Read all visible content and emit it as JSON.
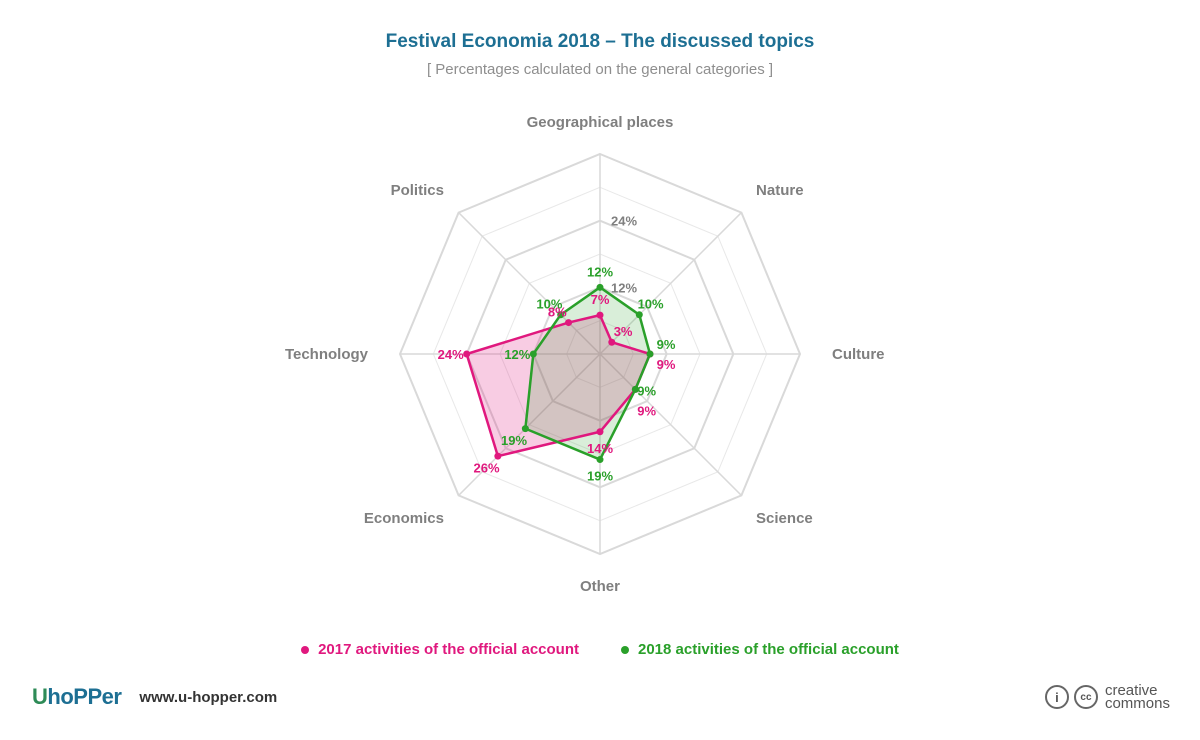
{
  "header": {
    "title": "Festival Economia 2018 – The discussed topics",
    "subtitle": "[ Percentages calculated on the general categories ]"
  },
  "chart_data": {
    "type": "radar",
    "categories": [
      "Geographical places",
      "Nature",
      "Culture",
      "Science",
      "Other",
      "Economics",
      "Technology",
      "Politics"
    ],
    "rlim": [
      0,
      36
    ],
    "ring_step": 6,
    "axis_tick_labels": [
      "12%",
      "24%"
    ],
    "series": [
      {
        "name": "2017 activities of the official account",
        "color": "#e0187e",
        "values": [
          7,
          3,
          9,
          9,
          14,
          26,
          24,
          8
        ],
        "value_labels": [
          "7%",
          "3%",
          "9%",
          "9%",
          "14%",
          "26%",
          "24%",
          "8%"
        ]
      },
      {
        "name": "2018 activities of the official account",
        "color": "#2aa02a",
        "values": [
          12,
          10,
          9,
          9,
          19,
          19,
          12,
          10
        ],
        "value_labels": [
          "12%",
          "10%",
          "9%",
          "9%",
          "19%",
          "19%",
          "12%",
          "10%"
        ]
      }
    ],
    "grid": true,
    "legend_position": "bottom"
  },
  "footer": {
    "brand_logo_prefix": "U",
    "brand_logo_rest": "hoPPer",
    "brand_url": "www.u-hopper.com",
    "cc_info_icon_glyph": "i",
    "cc_icon_glyph": "cc",
    "cc_word_top": "creative",
    "cc_word_bottom": "commons"
  },
  "colors": {
    "title": "#1d6f93",
    "subtitle": "#8e8e8e",
    "category_label": "#7f7f7f",
    "grid": "#d9d9d9"
  }
}
